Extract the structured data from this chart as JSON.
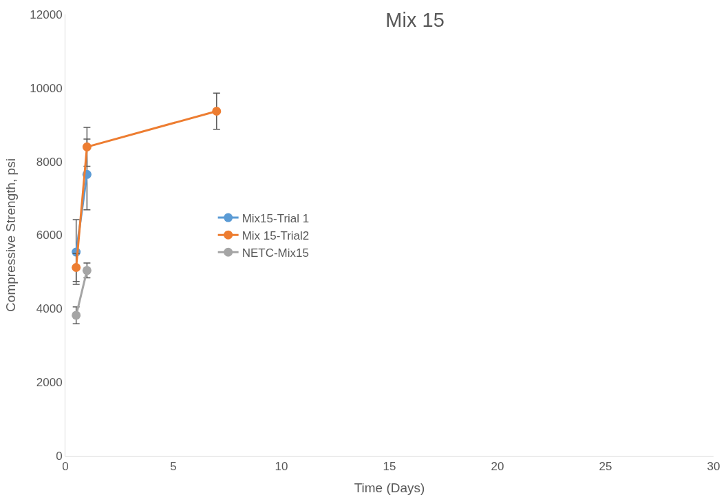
{
  "chart_data": {
    "type": "line",
    "title": "Mix 15",
    "xlabel": "Time (Days)",
    "ylabel": "Compressive Strength, psi",
    "xlim": [
      0,
      30
    ],
    "xticks": [
      0,
      5,
      10,
      15,
      20,
      25,
      30
    ],
    "ylim": [
      0,
      12000
    ],
    "yticks": [
      0,
      2000,
      4000,
      6000,
      8000,
      10000,
      12000
    ],
    "grid": false,
    "legend": "left",
    "marker": "circle",
    "line_style": "solid",
    "series": [
      {
        "name": "Mix15-Trial 1",
        "color": "#5b9bd5",
        "x": [
          0.5,
          1
        ],
        "values": [
          5540,
          7650
        ],
        "errors": [
          880,
          960
        ]
      },
      {
        "name": "Mix 15-Trial2",
        "color": "#ed7d31",
        "x": [
          0.5,
          1,
          7
        ],
        "values": [
          5120,
          8400,
          9370
        ],
        "errors": [
          380,
          530,
          490
        ]
      },
      {
        "name": "NETC-Mix15",
        "color": "#a5a5a5",
        "x": [
          0.5,
          1
        ],
        "values": [
          3820,
          5040
        ],
        "errors": [
          230,
          200
        ]
      }
    ]
  }
}
